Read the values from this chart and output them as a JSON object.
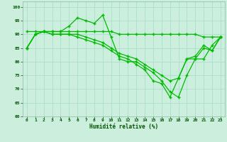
{
  "xlabel": "Humidité relative (%)",
  "background_color": "#cceedd",
  "grid_color": "#aaddcc",
  "line_color": "#00bb00",
  "xlim": [
    -0.5,
    23.5
  ],
  "ylim": [
    60,
    102
  ],
  "yticks": [
    60,
    65,
    70,
    75,
    80,
    85,
    90,
    95,
    100
  ],
  "xticks": [
    0,
    1,
    2,
    3,
    4,
    5,
    6,
    7,
    8,
    9,
    10,
    11,
    12,
    13,
    14,
    15,
    16,
    17,
    18,
    19,
    20,
    21,
    22,
    23
  ],
  "lines": [
    [
      85,
      90,
      91,
      91,
      91,
      93,
      96,
      95,
      94,
      97,
      89,
      81,
      80,
      80,
      78,
      76,
      73,
      69,
      67,
      75,
      81,
      81,
      86,
      89
    ],
    [
      91,
      91,
      91,
      91,
      91,
      91,
      91,
      91,
      91,
      91,
      91,
      90,
      90,
      90,
      90,
      90,
      90,
      90,
      90,
      90,
      90,
      89,
      89,
      89
    ],
    [
      85,
      90,
      91,
      90,
      90,
      90,
      90,
      89,
      88,
      87,
      85,
      83,
      82,
      81,
      79,
      77,
      75,
      73,
      74,
      81,
      82,
      86,
      84,
      89
    ],
    [
      85,
      90,
      91,
      90,
      90,
      90,
      89,
      88,
      87,
      86,
      84,
      82,
      81,
      79,
      77,
      73,
      72,
      67,
      74,
      81,
      81,
      85,
      84,
      89
    ]
  ]
}
